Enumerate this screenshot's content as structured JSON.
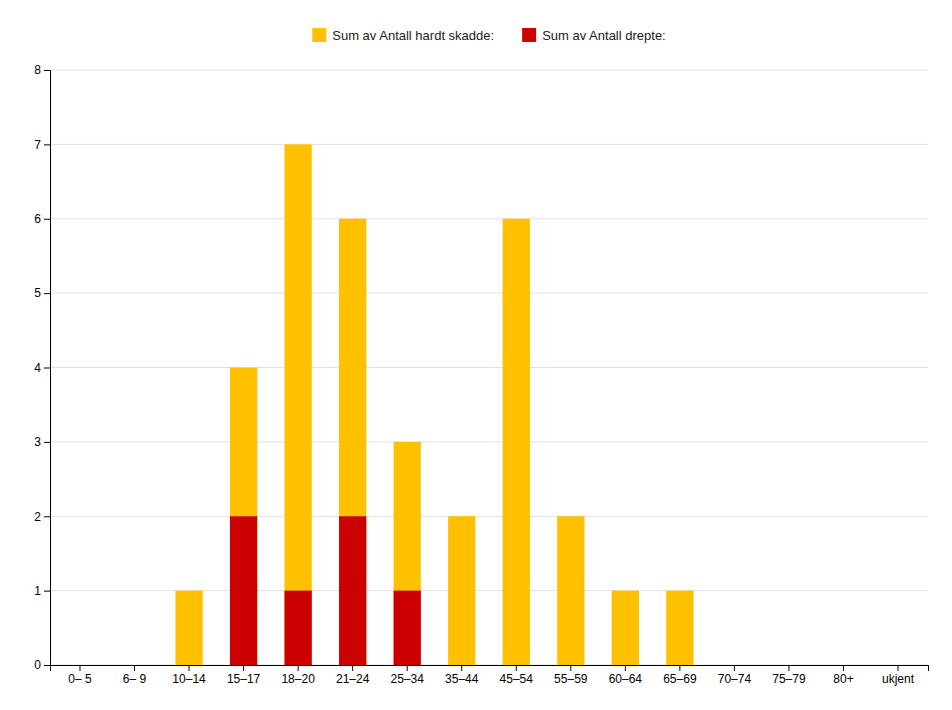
{
  "chart_data": {
    "type": "bar",
    "categories": [
      "0– 5",
      "6– 9",
      "10–14",
      "15–17",
      "18–20",
      "21–24",
      "25–34",
      "35–44",
      "45–54",
      "55–59",
      "60–64",
      "65–69",
      "70–74",
      "75–79",
      "80+",
      "ukjent"
    ],
    "series": [
      {
        "name": "Sum av Antall hardt skadde:",
        "color": "#FFC000",
        "values": [
          0,
          0,
          1,
          4,
          7,
          6,
          3,
          2,
          6,
          2,
          1,
          1,
          0,
          0,
          0,
          0
        ]
      },
      {
        "name": "Sum av Antall drepte:",
        "color": "#CC0000",
        "values": [
          0,
          0,
          0,
          2,
          1,
          2,
          1,
          0,
          0,
          0,
          0,
          0,
          0,
          0,
          0,
          0
        ]
      }
    ],
    "ylim": [
      0,
      8
    ],
    "yticks": [
      0,
      1,
      2,
      3,
      4,
      5,
      6,
      7,
      8
    ],
    "grid": true,
    "legend": "top"
  }
}
